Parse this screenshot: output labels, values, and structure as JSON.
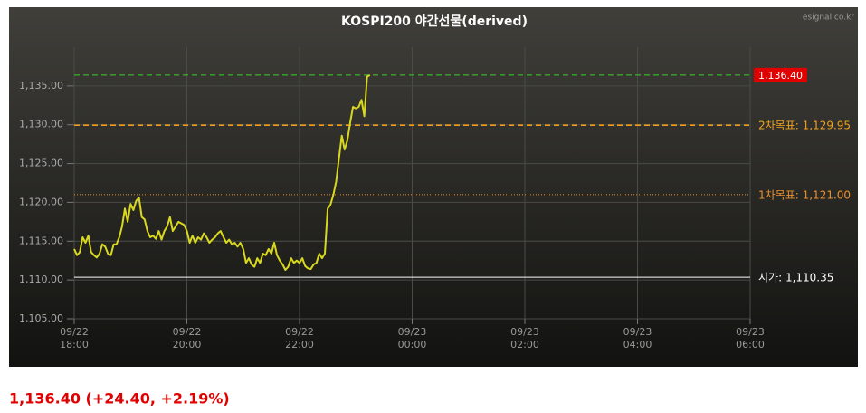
{
  "chart_data": {
    "type": "line",
    "title": "KOSPI200 야간선물(derived)",
    "watermark": "esignal.co.kr",
    "color": "#d8d81e",
    "x": [
      "09/22 18:00",
      "09/22 18:03",
      "09/22 18:06",
      "09/22 18:09",
      "09/22 18:12",
      "09/22 18:15",
      "09/22 18:18",
      "09/22 18:21",
      "09/22 18:24",
      "09/22 18:27",
      "09/22 18:30",
      "09/22 18:33",
      "09/22 18:36",
      "09/22 18:39",
      "09/22 18:42",
      "09/22 18:45",
      "09/22 18:48",
      "09/22 18:51",
      "09/22 18:54",
      "09/22 18:57",
      "09/22 19:00",
      "09/22 19:03",
      "09/22 19:06",
      "09/22 19:09",
      "09/22 19:12",
      "09/22 19:15",
      "09/22 19:18",
      "09/22 19:21",
      "09/22 19:24",
      "09/22 19:27",
      "09/22 19:30",
      "09/22 19:33",
      "09/22 19:36",
      "09/22 19:39",
      "09/22 19:42",
      "09/22 19:45",
      "09/22 19:48",
      "09/22 19:51",
      "09/22 19:54",
      "09/22 19:57",
      "09/22 20:00",
      "09/22 20:03",
      "09/22 20:06",
      "09/22 20:09",
      "09/22 20:12",
      "09/22 20:15",
      "09/22 20:18",
      "09/22 20:21",
      "09/22 20:24",
      "09/22 20:27",
      "09/22 20:30",
      "09/22 20:33",
      "09/22 20:36",
      "09/22 20:39",
      "09/22 20:42",
      "09/22 20:45",
      "09/22 20:48",
      "09/22 20:51",
      "09/22 20:54",
      "09/22 20:57",
      "09/22 21:00",
      "09/22 21:03",
      "09/22 21:06",
      "09/22 21:09",
      "09/22 21:12",
      "09/22 21:15",
      "09/22 21:18",
      "09/22 21:21",
      "09/22 21:24",
      "09/22 21:27",
      "09/22 21:30",
      "09/22 21:33",
      "09/22 21:36",
      "09/22 21:39",
      "09/22 21:42",
      "09/22 21:45",
      "09/22 21:48",
      "09/22 21:51",
      "09/22 21:54",
      "09/22 21:57",
      "09/22 22:00",
      "09/22 22:03",
      "09/22 22:06",
      "09/22 22:09",
      "09/22 22:12",
      "09/22 22:15",
      "09/22 22:18",
      "09/22 22:21",
      "09/22 22:24",
      "09/22 22:27",
      "09/22 22:30",
      "09/22 22:33",
      "09/22 22:36",
      "09/22 22:39",
      "09/22 22:42",
      "09/22 22:45",
      "09/22 22:48",
      "09/22 22:51",
      "09/22 22:54",
      "09/22 22:57",
      "09/22 23:00",
      "09/22 23:03",
      "09/22 23:06",
      "09/22 23:09",
      "09/22 23:12",
      "09/22 23:15"
    ],
    "values": [
      1114.0,
      1113.2,
      1113.6,
      1115.5,
      1114.8,
      1115.7,
      1113.6,
      1113.2,
      1112.9,
      1113.4,
      1114.6,
      1114.3,
      1113.4,
      1113.2,
      1114.6,
      1114.6,
      1115.5,
      1116.9,
      1119.2,
      1117.5,
      1119.8,
      1119.0,
      1120.2,
      1120.6,
      1118.1,
      1117.8,
      1116.3,
      1115.5,
      1115.7,
      1115.3,
      1116.3,
      1115.2,
      1116.3,
      1116.9,
      1118.1,
      1116.3,
      1116.9,
      1117.5,
      1117.3,
      1117.1,
      1116.3,
      1114.8,
      1115.7,
      1114.8,
      1115.5,
      1115.2,
      1116.0,
      1115.5,
      1114.8,
      1115.2,
      1115.5,
      1116.0,
      1116.3,
      1115.5,
      1114.8,
      1115.2,
      1114.6,
      1114.8,
      1114.3,
      1114.8,
      1114.0,
      1112.2,
      1112.8,
      1112.0,
      1111.7,
      1112.8,
      1112.2,
      1113.4,
      1113.2,
      1114.0,
      1113.4,
      1114.8,
      1113.2,
      1112.5,
      1112.0,
      1111.3,
      1111.7,
      1112.8,
      1112.2,
      1112.5,
      1112.2,
      1112.8,
      1111.8,
      1111.5,
      1111.4,
      1112.0,
      1112.2,
      1113.4,
      1112.8,
      1113.4,
      1119.2,
      1119.7,
      1121.0,
      1122.7,
      1125.7,
      1128.6,
      1126.8,
      1128.0,
      1130.3,
      1132.3,
      1132.1,
      1132.3,
      1133.2,
      1131.1,
      1136.2,
      1136.4
    ],
    "xlim": [
      "09/22 18:00",
      "09/23 06:00"
    ],
    "xticks": [
      "09/22 18:00",
      "09/22 20:00",
      "09/22 22:00",
      "09/23 00:00",
      "09/23 02:00",
      "09/23 04:00",
      "09/23 06:00"
    ],
    "ylim": [
      1105,
      1140
    ],
    "yticks": [
      {
        "value": 1105,
        "label": "1,105.00"
      },
      {
        "value": 1110,
        "label": "1,110.00"
      },
      {
        "value": 1115,
        "label": "1,115.00"
      },
      {
        "value": 1120,
        "label": "1,120.00"
      },
      {
        "value": 1125,
        "label": "1,125.00"
      },
      {
        "value": 1130,
        "label": "1,130.00"
      },
      {
        "value": 1135,
        "label": "1,135.00"
      }
    ],
    "grid": true,
    "reference_lines": [
      {
        "label": "1,136.40",
        "value": 1136.4,
        "color": "#3ecf2a",
        "style": "dashed",
        "boxed": true
      },
      {
        "label": "2차목표: 1,129.95",
        "value": 1129.95,
        "color": "#f0a020",
        "style": "dashed",
        "boxed": false
      },
      {
        "label": "1차목표: 1,121.00",
        "value": 1121.0,
        "color": "#e89030",
        "style": "dotted",
        "boxed": false
      },
      {
        "label": "시가: 1,110.35",
        "value": 1110.35,
        "color": "#ffffff",
        "style": "solid",
        "boxed": false
      }
    ],
    "summary": "1,136.40 (+24.40, +2.19%)",
    "summary_color": "#e00000"
  }
}
